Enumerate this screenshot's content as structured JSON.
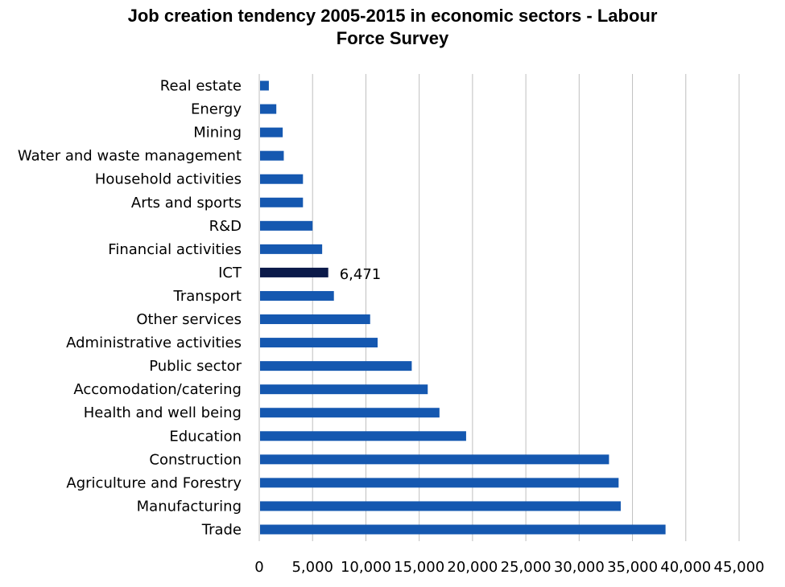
{
  "chart_data": {
    "type": "bar",
    "orientation": "horizontal",
    "title_lines": [
      "Job creation tendency 2005-2015 in economic sectors - Labour",
      "Force Survey"
    ],
    "categories": [
      "Real estate",
      "Energy",
      "Mining",
      "Water and waste management",
      "Household activities",
      "Arts and sports",
      "R&D",
      "Financial activities",
      "ICT",
      "Transport",
      "Other services",
      "Administrative activities",
      "Public sector",
      "Accomodation/catering",
      "Health and well being",
      "Education",
      "Construction",
      "Agriculture and Forestry",
      "Manufacturing",
      "Trade"
    ],
    "values": [
      900,
      1600,
      2200,
      2300,
      4100,
      4100,
      5000,
      5900,
      6471,
      7000,
      10400,
      11100,
      14300,
      15800,
      16900,
      19400,
      32800,
      33700,
      33900,
      38100
    ],
    "highlight_index": 8,
    "data_labels": [
      {
        "index": 8,
        "text": "6,471"
      }
    ],
    "xlim": [
      0,
      45000
    ],
    "x_ticks": [
      "0",
      "5,000",
      "10,000",
      "15,000",
      "20,000",
      "25,000",
      "30,000",
      "35,000",
      "40,000",
      "45,000"
    ],
    "grid": "vertical",
    "colors": {
      "bar": "#1558b0",
      "highlight": "#0b1a4a",
      "grid": "#bfbfbf"
    }
  }
}
